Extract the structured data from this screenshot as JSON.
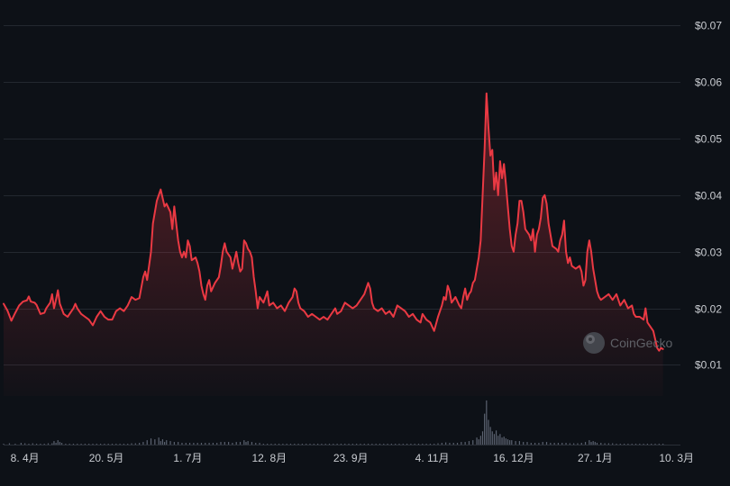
{
  "chart_data": {
    "type": "line",
    "y_tick_labels": [
      "$0.01",
      "$0.02",
      "$0.03",
      "$0.04",
      "$0.05",
      "$0.06",
      "$0.07"
    ],
    "y_ticks": [
      0.01,
      0.02,
      0.03,
      0.04,
      0.05,
      0.06,
      0.07
    ],
    "ylim": [
      0.0045,
      0.0745
    ],
    "x_tick_labels": [
      "8. 4月",
      "20. 5月",
      "1. 7月",
      "12. 8月",
      "23. 9月",
      "4. 11月",
      "16. 12月",
      "27. 1月",
      "10. 3月"
    ],
    "x_tick_days": [
      11,
      53,
      95,
      137,
      179,
      221,
      263,
      305,
      347
    ],
    "xlim_days": [
      0,
      349
    ],
    "grid": true,
    "line_color": "#ea3943",
    "price": [
      [
        0,
        0.0208
      ],
      [
        2,
        0.0196
      ],
      [
        4,
        0.0178
      ],
      [
        6,
        0.0192
      ],
      [
        8,
        0.0205
      ],
      [
        10,
        0.0212
      ],
      [
        12,
        0.0214
      ],
      [
        13,
        0.0221
      ],
      [
        14,
        0.0212
      ],
      [
        16,
        0.021
      ],
      [
        17,
        0.0206
      ],
      [
        19,
        0.019
      ],
      [
        21,
        0.0192
      ],
      [
        22,
        0.02
      ],
      [
        24,
        0.021
      ],
      [
        25,
        0.0225
      ],
      [
        26,
        0.02
      ],
      [
        27,
        0.0215
      ],
      [
        28,
        0.0232
      ],
      [
        29,
        0.0208
      ],
      [
        31,
        0.019
      ],
      [
        33,
        0.0185
      ],
      [
        35,
        0.0195
      ],
      [
        36,
        0.02
      ],
      [
        37,
        0.0208
      ],
      [
        38,
        0.02
      ],
      [
        40,
        0.019
      ],
      [
        42,
        0.0185
      ],
      [
        44,
        0.018
      ],
      [
        46,
        0.017
      ],
      [
        48,
        0.0185
      ],
      [
        50,
        0.0195
      ],
      [
        52,
        0.0185
      ],
      [
        54,
        0.018
      ],
      [
        56,
        0.018
      ],
      [
        58,
        0.0195
      ],
      [
        60,
        0.02
      ],
      [
        62,
        0.0195
      ],
      [
        64,
        0.0205
      ],
      [
        66,
        0.022
      ],
      [
        68,
        0.0215
      ],
      [
        70,
        0.0218
      ],
      [
        72,
        0.0255
      ],
      [
        73,
        0.0265
      ],
      [
        74,
        0.025
      ],
      [
        76,
        0.03
      ],
      [
        77,
        0.035
      ],
      [
        78,
        0.037
      ],
      [
        79,
        0.039
      ],
      [
        80,
        0.04
      ],
      [
        81,
        0.041
      ],
      [
        82,
        0.0395
      ],
      [
        83,
        0.038
      ],
      [
        84,
        0.0385
      ],
      [
        86,
        0.037
      ],
      [
        87,
        0.034
      ],
      [
        88,
        0.038
      ],
      [
        90,
        0.032
      ],
      [
        91,
        0.03
      ],
      [
        92,
        0.029
      ],
      [
        93,
        0.03
      ],
      [
        94,
        0.029
      ],
      [
        95,
        0.032
      ],
      [
        96,
        0.031
      ],
      [
        97,
        0.0285
      ],
      [
        99,
        0.029
      ],
      [
        100,
        0.028
      ],
      [
        101,
        0.0265
      ],
      [
        102,
        0.024
      ],
      [
        103,
        0.0225
      ],
      [
        104,
        0.0215
      ],
      [
        105,
        0.024
      ],
      [
        106,
        0.025
      ],
      [
        107,
        0.023
      ],
      [
        109,
        0.0245
      ],
      [
        111,
        0.0255
      ],
      [
        112,
        0.0275
      ],
      [
        113,
        0.03
      ],
      [
        114,
        0.0315
      ],
      [
        115,
        0.03
      ],
      [
        117,
        0.029
      ],
      [
        118,
        0.027
      ],
      [
        119,
        0.0285
      ],
      [
        120,
        0.03
      ],
      [
        121,
        0.028
      ],
      [
        122,
        0.0265
      ],
      [
        123,
        0.027
      ],
      [
        124,
        0.032
      ],
      [
        125,
        0.0315
      ],
      [
        126,
        0.0305
      ],
      [
        127,
        0.03
      ],
      [
        128,
        0.029
      ],
      [
        129,
        0.0255
      ],
      [
        130,
        0.023
      ],
      [
        131,
        0.02
      ],
      [
        132,
        0.022
      ],
      [
        134,
        0.021
      ],
      [
        136,
        0.023
      ],
      [
        137,
        0.0205
      ],
      [
        139,
        0.021
      ],
      [
        141,
        0.02
      ],
      [
        143,
        0.0205
      ],
      [
        145,
        0.0195
      ],
      [
        147,
        0.021
      ],
      [
        149,
        0.022
      ],
      [
        150,
        0.0235
      ],
      [
        151,
        0.023
      ],
      [
        152,
        0.021
      ],
      [
        153,
        0.02
      ],
      [
        155,
        0.0195
      ],
      [
        157,
        0.0185
      ],
      [
        159,
        0.019
      ],
      [
        161,
        0.0185
      ],
      [
        163,
        0.018
      ],
      [
        165,
        0.0185
      ],
      [
        167,
        0.018
      ],
      [
        169,
        0.019
      ],
      [
        171,
        0.02
      ],
      [
        172,
        0.019
      ],
      [
        174,
        0.0195
      ],
      [
        176,
        0.021
      ],
      [
        178,
        0.0205
      ],
      [
        180,
        0.02
      ],
      [
        182,
        0.0205
      ],
      [
        184,
        0.0215
      ],
      [
        186,
        0.0225
      ],
      [
        188,
        0.0245
      ],
      [
        189,
        0.0235
      ],
      [
        190,
        0.021
      ],
      [
        191,
        0.02
      ],
      [
        193,
        0.0195
      ],
      [
        195,
        0.02
      ],
      [
        197,
        0.019
      ],
      [
        199,
        0.0195
      ],
      [
        201,
        0.0185
      ],
      [
        203,
        0.0205
      ],
      [
        205,
        0.02
      ],
      [
        207,
        0.0195
      ],
      [
        209,
        0.0185
      ],
      [
        211,
        0.019
      ],
      [
        213,
        0.018
      ],
      [
        215,
        0.0175
      ],
      [
        216,
        0.019
      ],
      [
        218,
        0.018
      ],
      [
        220,
        0.0175
      ],
      [
        222,
        0.016
      ],
      [
        224,
        0.0185
      ],
      [
        226,
        0.0205
      ],
      [
        227,
        0.022
      ],
      [
        228,
        0.0215
      ],
      [
        229,
        0.024
      ],
      [
        230,
        0.023
      ],
      [
        231,
        0.021
      ],
      [
        233,
        0.022
      ],
      [
        235,
        0.0205
      ],
      [
        236,
        0.02
      ],
      [
        237,
        0.022
      ],
      [
        238,
        0.0235
      ],
      [
        239,
        0.0215
      ],
      [
        240,
        0.0225
      ],
      [
        241,
        0.023
      ],
      [
        242,
        0.0245
      ],
      [
        243,
        0.025
      ],
      [
        244,
        0.027
      ],
      [
        245,
        0.029
      ],
      [
        246,
        0.032
      ],
      [
        247,
        0.04
      ],
      [
        248,
        0.048
      ],
      [
        249,
        0.058
      ],
      [
        250,
        0.052
      ],
      [
        251,
        0.047
      ],
      [
        252,
        0.048
      ],
      [
        253,
        0.041
      ],
      [
        254,
        0.044
      ],
      [
        255,
        0.04
      ],
      [
        256,
        0.046
      ],
      [
        257,
        0.043
      ],
      [
        258,
        0.0455
      ],
      [
        259,
        0.042
      ],
      [
        260,
        0.038
      ],
      [
        261,
        0.034
      ],
      [
        262,
        0.031
      ],
      [
        263,
        0.03
      ],
      [
        264,
        0.033
      ],
      [
        265,
        0.035
      ],
      [
        266,
        0.039
      ],
      [
        267,
        0.039
      ],
      [
        268,
        0.037
      ],
      [
        269,
        0.034
      ],
      [
        271,
        0.033
      ],
      [
        272,
        0.032
      ],
      [
        273,
        0.034
      ],
      [
        274,
        0.03
      ],
      [
        275,
        0.033
      ],
      [
        276,
        0.034
      ],
      [
        277,
        0.036
      ],
      [
        278,
        0.0395
      ],
      [
        279,
        0.04
      ],
      [
        280,
        0.0385
      ],
      [
        281,
        0.035
      ],
      [
        282,
        0.033
      ],
      [
        283,
        0.031
      ],
      [
        285,
        0.0305
      ],
      [
        286,
        0.03
      ],
      [
        287,
        0.032
      ],
      [
        288,
        0.033
      ],
      [
        289,
        0.0355
      ],
      [
        290,
        0.03
      ],
      [
        291,
        0.028
      ],
      [
        292,
        0.029
      ],
      [
        293,
        0.0275
      ],
      [
        295,
        0.027
      ],
      [
        297,
        0.0275
      ],
      [
        298,
        0.0265
      ],
      [
        299,
        0.024
      ],
      [
        300,
        0.025
      ],
      [
        301,
        0.03
      ],
      [
        302,
        0.032
      ],
      [
        303,
        0.03
      ],
      [
        304,
        0.027
      ],
      [
        305,
        0.025
      ],
      [
        306,
        0.023
      ],
      [
        307,
        0.022
      ],
      [
        308,
        0.0215
      ],
      [
        310,
        0.022
      ],
      [
        312,
        0.0225
      ],
      [
        314,
        0.0215
      ],
      [
        316,
        0.0225
      ],
      [
        318,
        0.0205
      ],
      [
        320,
        0.0215
      ],
      [
        322,
        0.02
      ],
      [
        324,
        0.0205
      ],
      [
        325,
        0.019
      ],
      [
        326,
        0.0185
      ],
      [
        328,
        0.0185
      ],
      [
        330,
        0.018
      ],
      [
        331,
        0.02
      ],
      [
        332,
        0.0175
      ],
      [
        333,
        0.017
      ],
      [
        334,
        0.0165
      ],
      [
        335,
        0.016
      ],
      [
        336,
        0.0145
      ],
      [
        337,
        0.013
      ],
      [
        338,
        0.0125
      ],
      [
        339,
        0.013
      ],
      [
        340,
        0.0128
      ]
    ],
    "volume": [
      [
        0,
        1
      ],
      [
        3,
        1.5
      ],
      [
        6,
        1
      ],
      [
        9,
        2
      ],
      [
        11,
        1.5
      ],
      [
        13,
        1
      ],
      [
        15,
        1.5
      ],
      [
        17,
        1
      ],
      [
        19,
        1
      ],
      [
        21,
        1
      ],
      [
        23,
        1.5
      ],
      [
        25,
        1.5
      ],
      [
        26,
        4
      ],
      [
        27,
        2
      ],
      [
        28,
        5
      ],
      [
        29,
        3
      ],
      [
        30,
        2
      ],
      [
        32,
        1
      ],
      [
        34,
        1
      ],
      [
        36,
        1
      ],
      [
        38,
        1
      ],
      [
        40,
        1
      ],
      [
        42,
        1
      ],
      [
        44,
        1
      ],
      [
        46,
        1
      ],
      [
        48,
        1
      ],
      [
        50,
        1
      ],
      [
        52,
        1
      ],
      [
        54,
        1
      ],
      [
        56,
        1
      ],
      [
        58,
        1
      ],
      [
        60,
        1
      ],
      [
        62,
        1
      ],
      [
        64,
        1
      ],
      [
        66,
        1.5
      ],
      [
        68,
        1.5
      ],
      [
        70,
        2
      ],
      [
        72,
        3
      ],
      [
        74,
        5
      ],
      [
        76,
        7
      ],
      [
        78,
        6
      ],
      [
        80,
        8
      ],
      [
        81,
        4
      ],
      [
        82,
        6
      ],
      [
        83,
        3
      ],
      [
        84,
        5
      ],
      [
        86,
        4
      ],
      [
        88,
        3
      ],
      [
        90,
        3
      ],
      [
        92,
        2
      ],
      [
        94,
        2
      ],
      [
        96,
        2
      ],
      [
        98,
        2
      ],
      [
        100,
        2
      ],
      [
        102,
        2
      ],
      [
        104,
        2
      ],
      [
        106,
        2
      ],
      [
        108,
        2
      ],
      [
        110,
        2
      ],
      [
        112,
        3
      ],
      [
        114,
        3
      ],
      [
        116,
        3
      ],
      [
        118,
        2
      ],
      [
        120,
        3
      ],
      [
        122,
        3
      ],
      [
        124,
        5
      ],
      [
        125,
        3
      ],
      [
        126,
        4
      ],
      [
        128,
        3
      ],
      [
        130,
        2
      ],
      [
        132,
        2
      ],
      [
        134,
        1
      ],
      [
        136,
        1
      ],
      [
        138,
        1
      ],
      [
        140,
        1
      ],
      [
        142,
        1
      ],
      [
        144,
        1
      ],
      [
        146,
        1
      ],
      [
        148,
        1
      ],
      [
        150,
        1
      ],
      [
        152,
        1
      ],
      [
        154,
        1
      ],
      [
        156,
        1
      ],
      [
        158,
        1
      ],
      [
        160,
        1
      ],
      [
        162,
        1
      ],
      [
        164,
        1
      ],
      [
        166,
        1
      ],
      [
        168,
        1
      ],
      [
        170,
        1
      ],
      [
        172,
        1
      ],
      [
        174,
        1
      ],
      [
        176,
        1
      ],
      [
        178,
        1
      ],
      [
        180,
        1
      ],
      [
        182,
        1
      ],
      [
        184,
        1
      ],
      [
        186,
        1
      ],
      [
        188,
        1
      ],
      [
        190,
        1
      ],
      [
        192,
        1
      ],
      [
        194,
        1
      ],
      [
        196,
        1
      ],
      [
        198,
        1
      ],
      [
        200,
        1
      ],
      [
        202,
        1
      ],
      [
        204,
        1
      ],
      [
        206,
        1
      ],
      [
        208,
        1
      ],
      [
        210,
        1
      ],
      [
        212,
        1
      ],
      [
        214,
        1
      ],
      [
        216,
        1
      ],
      [
        218,
        1
      ],
      [
        220,
        1
      ],
      [
        222,
        1
      ],
      [
        224,
        1.5
      ],
      [
        226,
        2
      ],
      [
        228,
        2.5
      ],
      [
        230,
        2
      ],
      [
        232,
        2
      ],
      [
        234,
        2
      ],
      [
        236,
        3
      ],
      [
        238,
        3
      ],
      [
        240,
        4
      ],
      [
        242,
        5
      ],
      [
        244,
        8
      ],
      [
        245,
        6
      ],
      [
        246,
        10
      ],
      [
        247,
        15
      ],
      [
        248,
        35
      ],
      [
        249,
        50
      ],
      [
        250,
        28
      ],
      [
        251,
        20
      ],
      [
        252,
        15
      ],
      [
        253,
        12
      ],
      [
        254,
        16
      ],
      [
        255,
        10
      ],
      [
        256,
        12
      ],
      [
        257,
        8
      ],
      [
        258,
        9
      ],
      [
        259,
        7
      ],
      [
        260,
        6
      ],
      [
        261,
        5
      ],
      [
        262,
        5
      ],
      [
        264,
        4
      ],
      [
        266,
        4
      ],
      [
        268,
        3
      ],
      [
        270,
        3
      ],
      [
        272,
        2
      ],
      [
        274,
        2
      ],
      [
        276,
        2
      ],
      [
        278,
        3
      ],
      [
        280,
        3
      ],
      [
        282,
        2
      ],
      [
        284,
        2
      ],
      [
        286,
        2
      ],
      [
        288,
        2
      ],
      [
        290,
        2
      ],
      [
        292,
        1.5
      ],
      [
        294,
        1.5
      ],
      [
        296,
        1.5
      ],
      [
        298,
        2
      ],
      [
        300,
        3
      ],
      [
        302,
        5
      ],
      [
        303,
        3
      ],
      [
        304,
        4
      ],
      [
        305,
        3
      ],
      [
        306,
        2
      ],
      [
        308,
        2
      ],
      [
        310,
        1.5
      ],
      [
        312,
        1.5
      ],
      [
        314,
        1.5
      ],
      [
        316,
        1
      ],
      [
        318,
        1
      ],
      [
        320,
        1
      ],
      [
        322,
        1
      ],
      [
        324,
        1
      ],
      [
        326,
        1
      ],
      [
        328,
        1
      ],
      [
        330,
        1
      ],
      [
        332,
        1
      ],
      [
        334,
        1
      ],
      [
        336,
        1
      ],
      [
        338,
        1
      ],
      [
        340,
        1
      ]
    ]
  },
  "watermark": {
    "text": "CoinGecko",
    "icon": "gecko-logo-icon"
  },
  "colors": {
    "background": "#0d1117",
    "grid": "#232830",
    "line": "#ea3943",
    "volume": "#5b6270",
    "tick_text": "#c9ccd1"
  }
}
